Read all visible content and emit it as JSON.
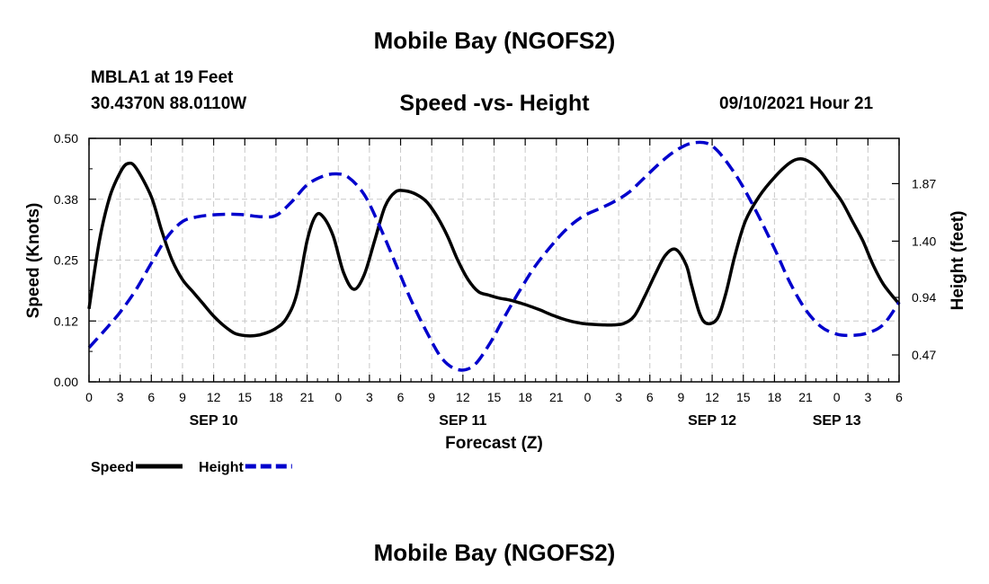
{
  "header": {
    "main_title": "Mobile Bay (NGOFS2)",
    "station_name": "MBLA1 at 19 Feet",
    "station_coords": "30.4370N  88.0110W",
    "chart_title": "Speed -vs- Height",
    "timestamp": "09/10/2021 Hour 21"
  },
  "footer": {
    "title": "Mobile Bay (NGOFS2)"
  },
  "chart_data": {
    "type": "line",
    "title": "Speed -vs- Height",
    "xlabel": "Forecast (Z)",
    "ylabel_left": "Speed (Knots)",
    "ylabel_right": "Height (feet)",
    "x_range_hours": [
      0,
      78
    ],
    "x_tick_labels": [
      "0",
      "3",
      "6",
      "9",
      "12",
      "15",
      "18",
      "21",
      "0",
      "3",
      "6",
      "9",
      "12",
      "15",
      "18",
      "21",
      "0",
      "3",
      "6",
      "9",
      "12",
      "15",
      "18",
      "21",
      "0",
      "3",
      "6"
    ],
    "date_labels": [
      {
        "label": "SEP 10",
        "hour": 12
      },
      {
        "label": "SEP 11",
        "hour": 36
      },
      {
        "label": "SEP 12",
        "hour": 60
      },
      {
        "label": "SEP 13",
        "hour": 72
      }
    ],
    "ylim_left": [
      0,
      0.5
    ],
    "y_left_ticks": [
      "0.00",
      "0.12",
      "0.25",
      "0.38",
      "0.50"
    ],
    "ylim_right": [
      0.25,
      2.24
    ],
    "y_right_ticks": [
      {
        "label": "0.47",
        "value": 0.47
      },
      {
        "label": "0.94",
        "value": 0.94
      },
      {
        "label": "1.40",
        "value": 1.4
      },
      {
        "label": "1.87",
        "value": 1.87
      }
    ],
    "grid": true,
    "legend_position": "bottom-left",
    "series": [
      {
        "name": "Speed",
        "axis": "left",
        "color": "#000000",
        "style": "solid",
        "x": [
          0,
          1,
          2,
          3,
          3.7,
          4.5,
          6,
          7,
          8,
          9,
          10,
          11,
          12,
          13,
          14,
          15,
          16,
          17,
          18,
          19,
          20,
          21,
          21.8,
          22.5,
          23.5,
          24.5,
          25.5,
          26.5,
          27.5,
          28.5,
          29.5,
          30.5,
          31.5,
          32.5,
          33.5,
          34.5,
          35.5,
          36.5,
          37.5,
          38.5,
          39.5,
          40.5,
          41.5,
          42.5,
          43.5,
          44.5,
          45.5,
          46.5,
          47.5,
          48.5,
          49.5,
          50.5,
          51.5,
          52.5,
          53.5,
          54.5,
          55.5,
          56.5,
          57.5,
          58,
          58.8,
          59.5,
          60.5,
          61.3,
          62.2,
          63.2,
          64.5,
          66,
          67.5,
          68.5,
          69.5,
          70.5,
          71.5,
          72.5,
          73.5,
          74.5,
          75.5,
          76.5,
          78
        ],
        "y": [
          0.15,
          0.29,
          0.38,
          0.43,
          0.448,
          0.44,
          0.38,
          0.31,
          0.25,
          0.21,
          0.185,
          0.16,
          0.135,
          0.115,
          0.1,
          0.095,
          0.095,
          0.1,
          0.11,
          0.13,
          0.18,
          0.29,
          0.34,
          0.34,
          0.3,
          0.225,
          0.19,
          0.22,
          0.29,
          0.36,
          0.39,
          0.392,
          0.385,
          0.37,
          0.34,
          0.3,
          0.25,
          0.21,
          0.185,
          0.178,
          0.172,
          0.168,
          0.162,
          0.155,
          0.147,
          0.138,
          0.13,
          0.124,
          0.12,
          0.118,
          0.117,
          0.117,
          0.12,
          0.135,
          0.175,
          0.22,
          0.26,
          0.272,
          0.24,
          0.2,
          0.14,
          0.12,
          0.13,
          0.18,
          0.26,
          0.33,
          0.38,
          0.42,
          0.45,
          0.458,
          0.45,
          0.43,
          0.4,
          0.37,
          0.33,
          0.29,
          0.24,
          0.2,
          0.16
        ]
      },
      {
        "name": "Height",
        "axis": "right",
        "color": "#0000cc",
        "style": "dashed",
        "x": [
          0,
          1.5,
          3,
          4.5,
          6,
          7.5,
          9,
          10.5,
          12,
          13.5,
          15,
          16.5,
          18,
          19.5,
          21,
          22.5,
          23.8,
          25,
          26.5,
          28,
          29.5,
          31,
          32.5,
          34,
          35.5,
          37,
          38.5,
          40,
          41.5,
          43,
          44.5,
          46,
          47.5,
          49,
          50.5,
          52,
          53.5,
          55,
          56.5,
          58,
          59.5,
          60.5,
          61.8,
          63,
          64.5,
          66,
          67.5,
          69,
          70.5,
          72,
          73.5,
          75,
          76.5,
          78
        ],
        "y": [
          0.53,
          0.67,
          0.82,
          1.0,
          1.22,
          1.43,
          1.56,
          1.6,
          1.615,
          1.62,
          1.615,
          1.6,
          1.61,
          1.72,
          1.86,
          1.93,
          1.95,
          1.92,
          1.78,
          1.52,
          1.22,
          0.92,
          0.66,
          0.44,
          0.35,
          0.38,
          0.55,
          0.78,
          1.0,
          1.2,
          1.36,
          1.5,
          1.6,
          1.66,
          1.72,
          1.8,
          1.92,
          2.04,
          2.14,
          2.2,
          2.2,
          2.14,
          2.0,
          1.84,
          1.6,
          1.34,
          1.06,
          0.84,
          0.7,
          0.64,
          0.63,
          0.65,
          0.72,
          0.9
        ]
      }
    ]
  }
}
